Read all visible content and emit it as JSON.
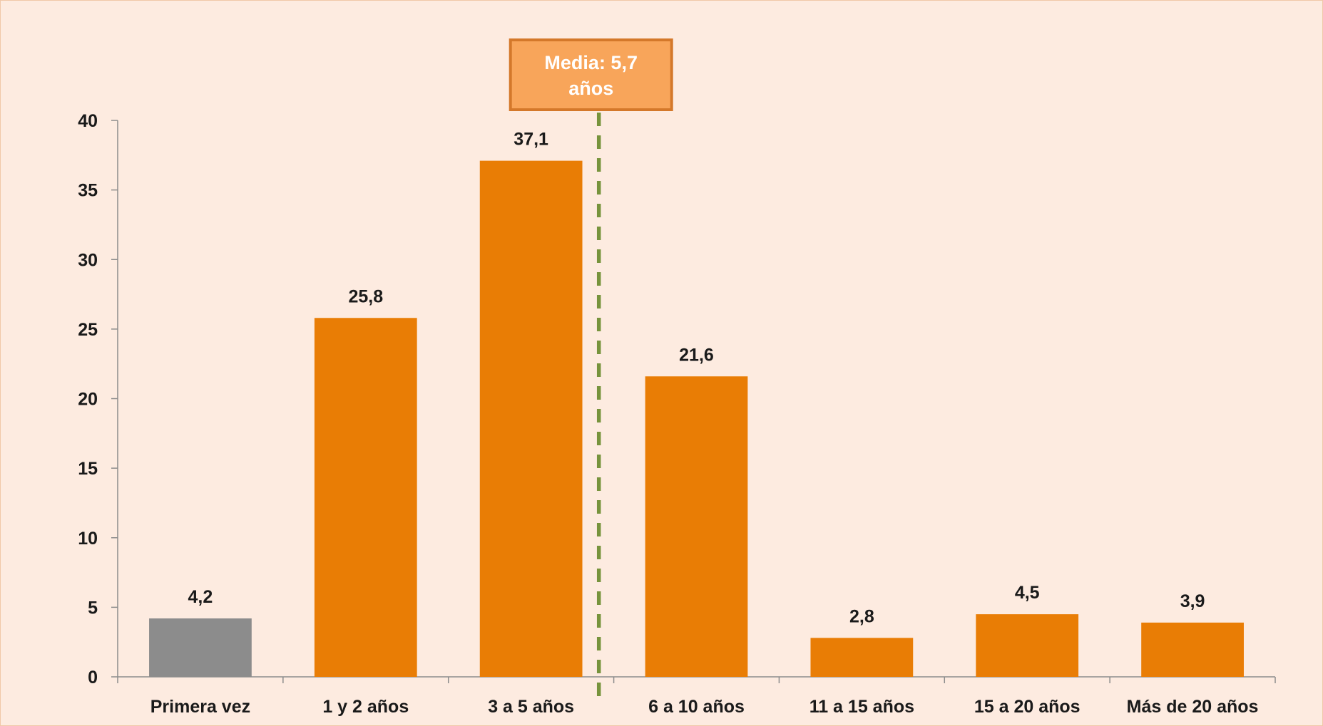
{
  "chart_data": {
    "type": "bar",
    "categories": [
      "Primera vez",
      "1 y 2 años",
      "3 a 5 años",
      "6 a 10 años",
      "11 a 15 años",
      "15 a 20 años",
      "Más de 20 años"
    ],
    "values": [
      4.2,
      25.8,
      37.1,
      21.6,
      2.8,
      4.5,
      3.9
    ],
    "data_labels": [
      "4,2",
      "25,8",
      "37,1",
      "21,6",
      "2,8",
      "4,5",
      "3,9"
    ],
    "bar_colors": [
      "#8c8c8c",
      "#e97d05",
      "#e97d05",
      "#e97d05",
      "#e97d05",
      "#e97d05",
      "#e97d05"
    ],
    "ylim": [
      0,
      40
    ],
    "yticks": [
      0,
      5,
      10,
      15,
      20,
      25,
      30,
      35,
      40
    ],
    "grid": false,
    "legend": "none",
    "annotation": {
      "lines": [
        "Media: 5,7",
        "años"
      ],
      "box_color": "#f8a55a",
      "border_color": "#d4782a",
      "line_color": "#77933c",
      "between_categories": [
        "3 a 5 años",
        "6 a 10 años"
      ]
    },
    "background": "#fdebe0"
  }
}
